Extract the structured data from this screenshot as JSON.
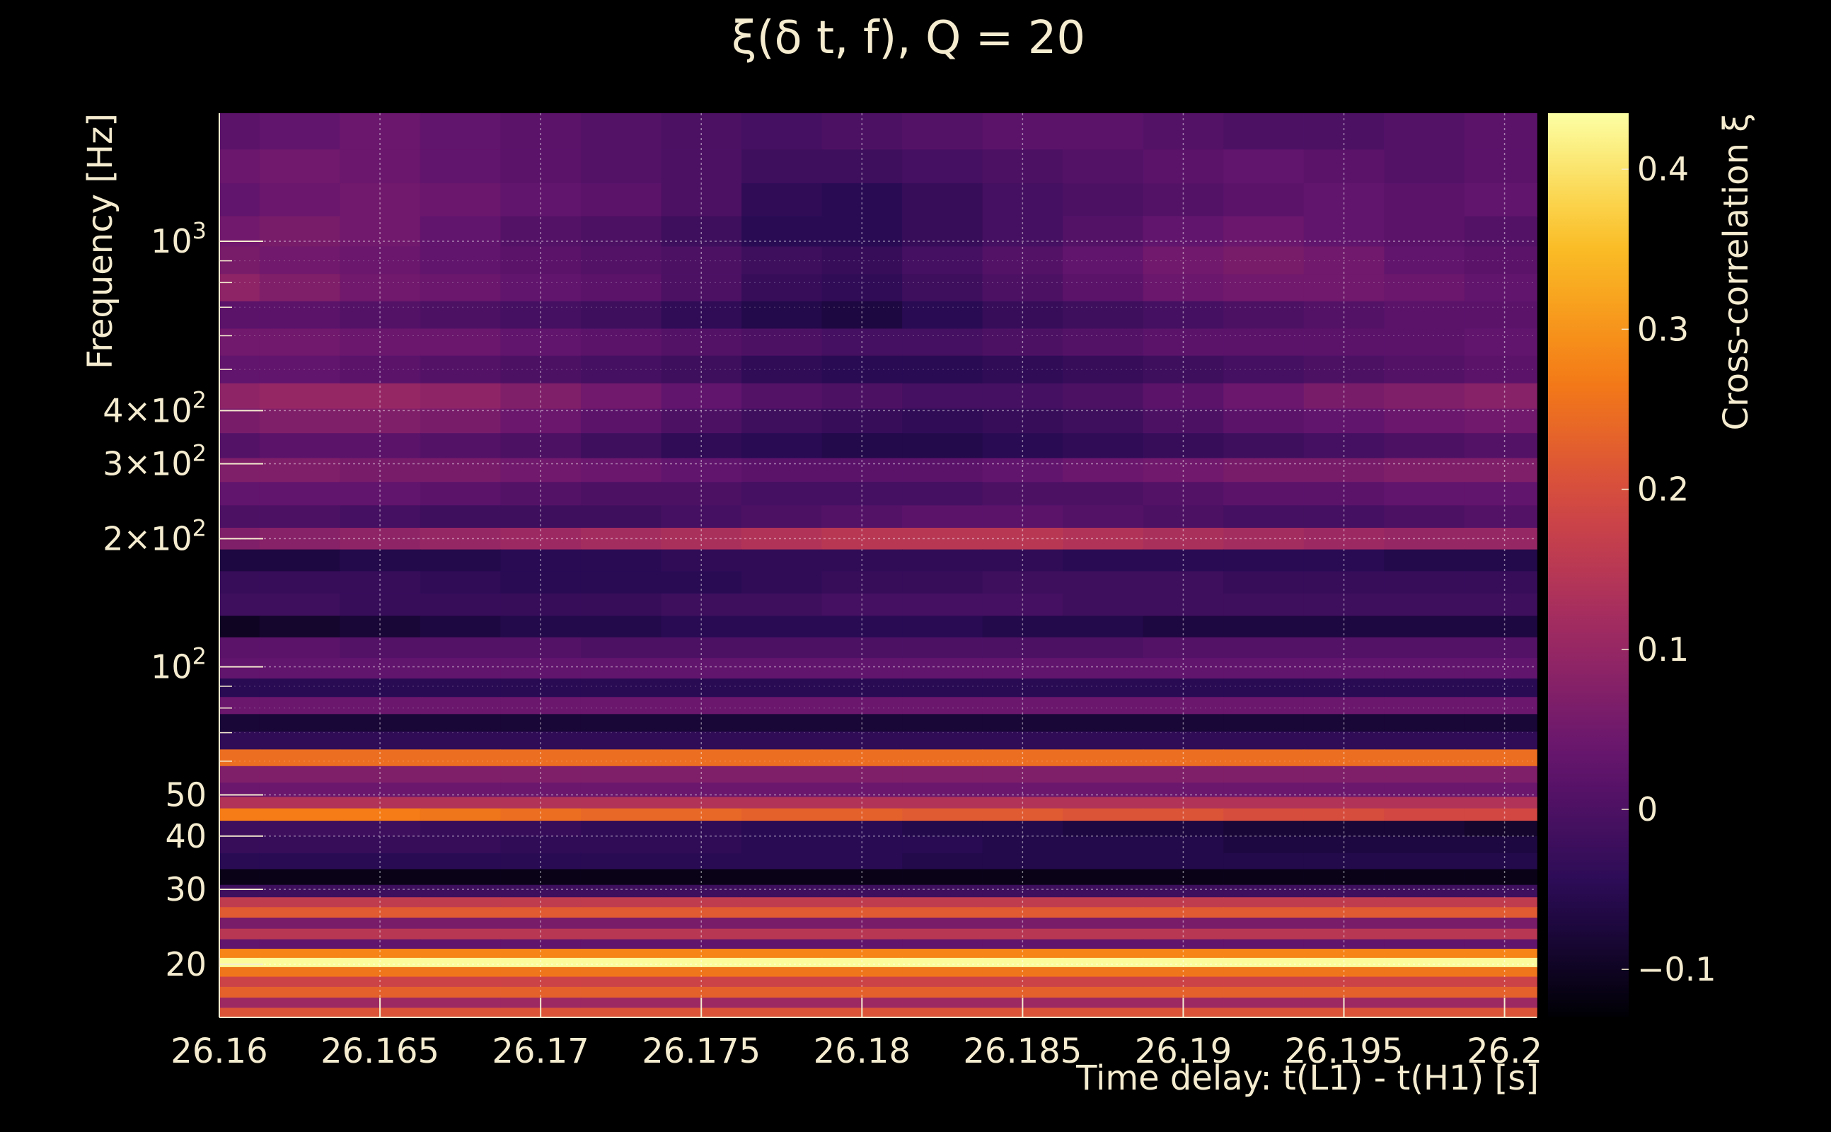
{
  "chart_data": {
    "type": "heatmap",
    "title": "ξ(δ t, f), Q = 20",
    "xlabel": "Time delay: t(L1) - t(H1) [s]",
    "ylabel": "Frequency [Hz]",
    "colorbar_label": "Cross-correlation ξ",
    "xlim": [
      26.16,
      26.201
    ],
    "ylim": [
      15,
      2000
    ],
    "y_scale": "log",
    "grid": true,
    "colormap": "inferno",
    "x_ticks": [
      {
        "value": 26.16,
        "label": "26.16"
      },
      {
        "value": 26.165,
        "label": "26.165"
      },
      {
        "value": 26.17,
        "label": "26.17"
      },
      {
        "value": 26.175,
        "label": "26.175"
      },
      {
        "value": 26.18,
        "label": "26.18"
      },
      {
        "value": 26.185,
        "label": "26.185"
      },
      {
        "value": 26.19,
        "label": "26.19"
      },
      {
        "value": 26.195,
        "label": "26.195"
      },
      {
        "value": 26.2,
        "label": "26.2"
      }
    ],
    "y_ticks": [
      {
        "value": 20,
        "label": "20"
      },
      {
        "value": 30,
        "label": "30"
      },
      {
        "value": 40,
        "label": "40"
      },
      {
        "value": 50,
        "label": "50"
      },
      {
        "value": 100,
        "base": "10",
        "exp": "2"
      },
      {
        "value": 200,
        "base": "2×10",
        "exp": "2"
      },
      {
        "value": 300,
        "base": "3×10",
        "exp": "2"
      },
      {
        "value": 400,
        "base": "4×10",
        "exp": "2"
      },
      {
        "value": 1000,
        "base": "10",
        "exp": "3"
      }
    ],
    "y_minor_ticks": [
      60,
      70,
      80,
      90,
      500,
      600,
      700,
      800,
      900
    ],
    "colorbar_range": [
      -0.13,
      0.435
    ],
    "colorbar_ticks": [
      {
        "value": -0.1,
        "label": "−0.1"
      },
      {
        "value": 0,
        "label": "0"
      },
      {
        "value": 0.1,
        "label": "0.1"
      },
      {
        "value": 0.2,
        "label": "0.2"
      },
      {
        "value": 0.3,
        "label": "0.3"
      },
      {
        "value": 0.4,
        "label": "0.4"
      }
    ],
    "x": [
      26.16,
      26.1625,
      26.165,
      26.1675,
      26.17,
      26.1725,
      26.175,
      26.1775,
      26.18,
      26.1825,
      26.185,
      26.1875,
      26.19,
      26.1925,
      26.195,
      26.1975,
      26.2
    ],
    "frequency_bands": [
      {
        "f": 1800,
        "values": [
          0.02,
          0.03,
          0.04,
          0.03,
          0.02,
          0.01,
          0.0,
          -0.01,
          0.0,
          0.01,
          0.02,
          0.02,
          0.01,
          0.0,
          0.0,
          0.01,
          0.02
        ]
      },
      {
        "f": 1500,
        "values": [
          0.04,
          0.05,
          0.04,
          0.03,
          0.02,
          0.01,
          0.0,
          -0.02,
          -0.02,
          -0.01,
          0.0,
          0.01,
          0.02,
          0.03,
          0.02,
          0.01,
          0.02
        ]
      },
      {
        "f": 1250,
        "values": [
          0.03,
          0.04,
          0.05,
          0.04,
          0.03,
          0.02,
          0.0,
          -0.04,
          -0.05,
          -0.03,
          -0.01,
          0.0,
          0.01,
          0.02,
          0.03,
          0.02,
          0.03
        ]
      },
      {
        "f": 1050,
        "values": [
          0.05,
          0.06,
          0.05,
          0.03,
          0.01,
          0.0,
          -0.02,
          -0.05,
          -0.05,
          -0.03,
          -0.01,
          0.01,
          0.03,
          0.04,
          0.03,
          0.02,
          0.01
        ]
      },
      {
        "f": 900,
        "values": [
          0.06,
          0.05,
          0.04,
          0.03,
          0.02,
          0.01,
          0.0,
          -0.02,
          -0.03,
          -0.01,
          0.01,
          0.03,
          0.05,
          0.06,
          0.05,
          0.03,
          0.02
        ]
      },
      {
        "f": 780,
        "values": [
          0.09,
          0.07,
          0.05,
          0.04,
          0.03,
          0.02,
          0.0,
          -0.03,
          -0.04,
          -0.02,
          0.0,
          0.02,
          0.04,
          0.05,
          0.05,
          0.04,
          0.03
        ]
      },
      {
        "f": 670,
        "values": [
          0.02,
          0.02,
          0.01,
          0.0,
          -0.01,
          -0.02,
          -0.04,
          -0.06,
          -0.07,
          -0.05,
          -0.03,
          -0.02,
          -0.01,
          0.0,
          0.01,
          0.02,
          0.02
        ]
      },
      {
        "f": 580,
        "values": [
          0.05,
          0.05,
          0.04,
          0.04,
          0.03,
          0.02,
          0.01,
          0.0,
          -0.01,
          -0.01,
          0.0,
          0.01,
          0.02,
          0.02,
          0.02,
          0.02,
          0.03
        ]
      },
      {
        "f": 500,
        "values": [
          0.03,
          0.03,
          0.02,
          0.01,
          0.0,
          -0.01,
          -0.02,
          -0.04,
          -0.05,
          -0.05,
          -0.04,
          -0.03,
          -0.02,
          -0.01,
          0.0,
          0.01,
          0.02
        ]
      },
      {
        "f": 430,
        "values": [
          0.09,
          0.1,
          0.1,
          0.09,
          0.07,
          0.05,
          0.03,
          0.01,
          0.0,
          -0.01,
          -0.01,
          0.0,
          0.02,
          0.04,
          0.06,
          0.07,
          0.08
        ]
      },
      {
        "f": 380,
        "values": [
          0.06,
          0.07,
          0.07,
          0.06,
          0.04,
          0.02,
          0.0,
          -0.02,
          -0.03,
          -0.04,
          -0.03,
          -0.02,
          0.0,
          0.02,
          0.03,
          0.04,
          0.05
        ]
      },
      {
        "f": 330,
        "values": [
          0.01,
          0.02,
          0.02,
          0.01,
          0.0,
          -0.02,
          -0.04,
          -0.05,
          -0.06,
          -0.06,
          -0.05,
          -0.04,
          -0.03,
          -0.02,
          -0.01,
          0.0,
          0.01
        ]
      },
      {
        "f": 290,
        "values": [
          0.07,
          0.07,
          0.06,
          0.06,
          0.05,
          0.04,
          0.03,
          0.02,
          0.02,
          0.02,
          0.03,
          0.04,
          0.05,
          0.06,
          0.06,
          0.07,
          0.07
        ]
      },
      {
        "f": 255,
        "values": [
          0.03,
          0.03,
          0.03,
          0.02,
          0.01,
          0.0,
          0.0,
          -0.01,
          -0.01,
          -0.01,
          0.0,
          0.0,
          0.01,
          0.02,
          0.02,
          0.03,
          0.03
        ]
      },
      {
        "f": 225,
        "values": [
          0.0,
          0.0,
          -0.01,
          -0.02,
          -0.02,
          -0.02,
          -0.01,
          0.0,
          0.01,
          0.02,
          0.02,
          0.01,
          0.0,
          -0.01,
          -0.01,
          0.0,
          0.01
        ]
      },
      {
        "f": 200,
        "values": [
          0.07,
          0.08,
          0.09,
          0.1,
          0.11,
          0.12,
          0.13,
          0.14,
          0.15,
          0.15,
          0.15,
          0.14,
          0.13,
          0.12,
          0.11,
          0.1,
          0.1
        ]
      },
      {
        "f": 178,
        "values": [
          -0.07,
          -0.07,
          -0.06,
          -0.06,
          -0.05,
          -0.05,
          -0.04,
          -0.04,
          -0.04,
          -0.04,
          -0.04,
          -0.05,
          -0.05,
          -0.05,
          -0.05,
          -0.06,
          -0.06
        ]
      },
      {
        "f": 158,
        "values": [
          -0.03,
          -0.03,
          -0.03,
          -0.04,
          -0.05,
          -0.05,
          -0.05,
          -0.04,
          -0.03,
          -0.03,
          -0.02,
          -0.02,
          -0.02,
          -0.03,
          -0.03,
          -0.03,
          -0.03
        ]
      },
      {
        "f": 140,
        "values": [
          -0.02,
          -0.02,
          -0.03,
          -0.03,
          -0.03,
          -0.03,
          -0.02,
          -0.02,
          -0.01,
          -0.01,
          -0.01,
          -0.02,
          -0.02,
          -0.02,
          -0.02,
          -0.02,
          -0.02
        ]
      },
      {
        "f": 124,
        "values": [
          -0.1,
          -0.09,
          -0.08,
          -0.07,
          -0.06,
          -0.06,
          -0.05,
          -0.05,
          -0.05,
          -0.05,
          -0.06,
          -0.06,
          -0.07,
          -0.07,
          -0.07,
          -0.07,
          -0.07
        ]
      },
      {
        "f": 111,
        "values": [
          0.02,
          0.02,
          0.01,
          0.01,
          0.01,
          0.0,
          0.0,
          0.0,
          0.0,
          0.0,
          0.0,
          0.0,
          0.01,
          0.01,
          0.01,
          0.01,
          0.01
        ]
      },
      {
        "f": 99,
        "values": [
          0.03,
          0.03,
          0.03,
          0.03,
          0.03,
          0.03,
          0.03,
          0.03,
          0.03,
          0.03,
          0.03,
          0.03,
          0.03,
          0.03,
          0.03,
          0.03,
          0.03
        ]
      },
      {
        "f": 89,
        "values": [
          -0.05,
          -0.05,
          -0.05,
          -0.05,
          -0.05,
          -0.05,
          -0.05,
          -0.05,
          -0.05,
          -0.05,
          -0.05,
          -0.05,
          -0.05,
          -0.05,
          -0.05,
          -0.05,
          -0.05
        ]
      },
      {
        "f": 81,
        "values": [
          0.04,
          0.04,
          0.04,
          0.04,
          0.04,
          0.04,
          0.04,
          0.04,
          0.04,
          0.04,
          0.04,
          0.04,
          0.04,
          0.04,
          0.04,
          0.04,
          0.04
        ]
      },
      {
        "f": 74,
        "values": [
          -0.08,
          -0.08,
          -0.08,
          -0.08,
          -0.08,
          -0.08,
          -0.08,
          -0.08,
          -0.08,
          -0.08,
          -0.08,
          -0.08,
          -0.08,
          -0.08,
          -0.08,
          -0.08,
          -0.08
        ]
      },
      {
        "f": 67,
        "values": [
          -0.04,
          -0.04,
          -0.04,
          -0.04,
          -0.04,
          -0.04,
          -0.04,
          -0.04,
          -0.04,
          -0.04,
          -0.04,
          -0.04,
          -0.04,
          -0.04,
          -0.04,
          -0.04,
          -0.04
        ]
      },
      {
        "f": 61,
        "values": [
          0.25,
          0.25,
          0.25,
          0.25,
          0.25,
          0.25,
          0.25,
          0.25,
          0.25,
          0.25,
          0.25,
          0.25,
          0.25,
          0.25,
          0.25,
          0.25,
          0.25
        ]
      },
      {
        "f": 56,
        "values": [
          0.07,
          0.07,
          0.07,
          0.07,
          0.07,
          0.07,
          0.07,
          0.07,
          0.07,
          0.07,
          0.07,
          0.07,
          0.07,
          0.07,
          0.07,
          0.07,
          0.07
        ]
      },
      {
        "f": 51,
        "values": [
          0.04,
          0.04,
          0.04,
          0.04,
          0.04,
          0.04,
          0.04,
          0.04,
          0.04,
          0.04,
          0.04,
          0.04,
          0.04,
          0.04,
          0.04,
          0.04,
          0.04
        ]
      },
      {
        "f": 48,
        "values": [
          0.14,
          0.14,
          0.14,
          0.14,
          0.14,
          0.14,
          0.14,
          0.14,
          0.14,
          0.14,
          0.14,
          0.14,
          0.14,
          0.14,
          0.14,
          0.14,
          0.14
        ]
      },
      {
        "f": 45,
        "values": [
          0.27,
          0.27,
          0.27,
          0.26,
          0.25,
          0.24,
          0.24,
          0.23,
          0.23,
          0.22,
          0.22,
          0.21,
          0.21,
          0.2,
          0.2,
          0.19,
          0.19
        ]
      },
      {
        "f": 42,
        "values": [
          -0.02,
          -0.02,
          -0.02,
          -0.03,
          -0.03,
          -0.04,
          -0.04,
          -0.05,
          -0.05,
          -0.06,
          -0.06,
          -0.07,
          -0.07,
          -0.08,
          -0.08,
          -0.08,
          -0.09
        ]
      },
      {
        "f": 38,
        "values": [
          -0.03,
          -0.03,
          -0.03,
          -0.03,
          -0.04,
          -0.04,
          -0.04,
          -0.05,
          -0.05,
          -0.05,
          -0.06,
          -0.06,
          -0.06,
          -0.07,
          -0.07,
          -0.07,
          -0.07
        ]
      },
      {
        "f": 35,
        "values": [
          -0.05,
          -0.05,
          -0.05,
          -0.05,
          -0.05,
          -0.05,
          -0.05,
          -0.05,
          -0.05,
          -0.06,
          -0.06,
          -0.06,
          -0.06,
          -0.06,
          -0.06,
          -0.06,
          -0.06
        ]
      },
      {
        "f": 32,
        "values": [
          -0.11,
          -0.11,
          -0.11,
          -0.11,
          -0.11,
          -0.11,
          -0.11,
          -0.11,
          -0.11,
          -0.11,
          -0.11,
          -0.11,
          -0.11,
          -0.11,
          -0.11,
          -0.11,
          -0.11
        ]
      },
      {
        "f": 29.5,
        "values": [
          -0.02,
          -0.02,
          -0.02,
          -0.02,
          -0.02,
          -0.02,
          -0.02,
          -0.02,
          -0.02,
          -0.02,
          -0.02,
          -0.02,
          -0.02,
          -0.02,
          -0.02,
          -0.02,
          -0.02
        ]
      },
      {
        "f": 28,
        "values": [
          0.16,
          0.16,
          0.16,
          0.16,
          0.16,
          0.16,
          0.16,
          0.16,
          0.16,
          0.16,
          0.16,
          0.16,
          0.16,
          0.16,
          0.16,
          0.16,
          0.16
        ]
      },
      {
        "f": 26.5,
        "values": [
          0.22,
          0.22,
          0.22,
          0.22,
          0.22,
          0.22,
          0.22,
          0.22,
          0.22,
          0.22,
          0.22,
          0.22,
          0.22,
          0.22,
          0.22,
          0.22,
          0.22
        ]
      },
      {
        "f": 25,
        "values": [
          0.06,
          0.06,
          0.06,
          0.06,
          0.06,
          0.06,
          0.06,
          0.06,
          0.06,
          0.06,
          0.06,
          0.06,
          0.06,
          0.06,
          0.06,
          0.06,
          0.06
        ]
      },
      {
        "f": 23.5,
        "values": [
          0.15,
          0.15,
          0.15,
          0.15,
          0.15,
          0.15,
          0.15,
          0.15,
          0.15,
          0.15,
          0.15,
          0.15,
          0.15,
          0.15,
          0.15,
          0.15,
          0.15
        ]
      },
      {
        "f": 22.3,
        "values": [
          0.03,
          0.03,
          0.03,
          0.03,
          0.03,
          0.03,
          0.03,
          0.03,
          0.03,
          0.03,
          0.03,
          0.03,
          0.03,
          0.03,
          0.03,
          0.03,
          0.03
        ]
      },
      {
        "f": 21.2,
        "values": [
          0.28,
          0.28,
          0.28,
          0.28,
          0.28,
          0.28,
          0.28,
          0.28,
          0.28,
          0.28,
          0.28,
          0.28,
          0.28,
          0.28,
          0.28,
          0.28,
          0.28
        ]
      },
      {
        "f": 20.2,
        "values": [
          0.43,
          0.43,
          0.43,
          0.43,
          0.43,
          0.43,
          0.43,
          0.43,
          0.43,
          0.43,
          0.43,
          0.43,
          0.43,
          0.43,
          0.43,
          0.43,
          0.43
        ]
      },
      {
        "f": 19.2,
        "values": [
          0.26,
          0.26,
          0.26,
          0.26,
          0.26,
          0.26,
          0.26,
          0.26,
          0.26,
          0.26,
          0.26,
          0.26,
          0.26,
          0.26,
          0.26,
          0.26,
          0.26
        ]
      },
      {
        "f": 18.2,
        "values": [
          0.18,
          0.18,
          0.18,
          0.18,
          0.18,
          0.18,
          0.18,
          0.18,
          0.18,
          0.18,
          0.18,
          0.18,
          0.18,
          0.18,
          0.18,
          0.18,
          0.18
        ]
      },
      {
        "f": 17.2,
        "values": [
          0.23,
          0.23,
          0.23,
          0.23,
          0.23,
          0.23,
          0.23,
          0.23,
          0.23,
          0.23,
          0.23,
          0.23,
          0.23,
          0.23,
          0.23,
          0.23,
          0.23
        ]
      },
      {
        "f": 16.2,
        "values": [
          0.11,
          0.11,
          0.11,
          0.11,
          0.11,
          0.11,
          0.11,
          0.11,
          0.11,
          0.11,
          0.11,
          0.11,
          0.11,
          0.11,
          0.11,
          0.11,
          0.11
        ]
      },
      {
        "f": 15.4,
        "values": [
          0.21,
          0.21,
          0.21,
          0.21,
          0.21,
          0.21,
          0.21,
          0.21,
          0.21,
          0.21,
          0.21,
          0.21,
          0.21,
          0.21,
          0.21,
          0.21,
          0.21
        ]
      }
    ]
  }
}
